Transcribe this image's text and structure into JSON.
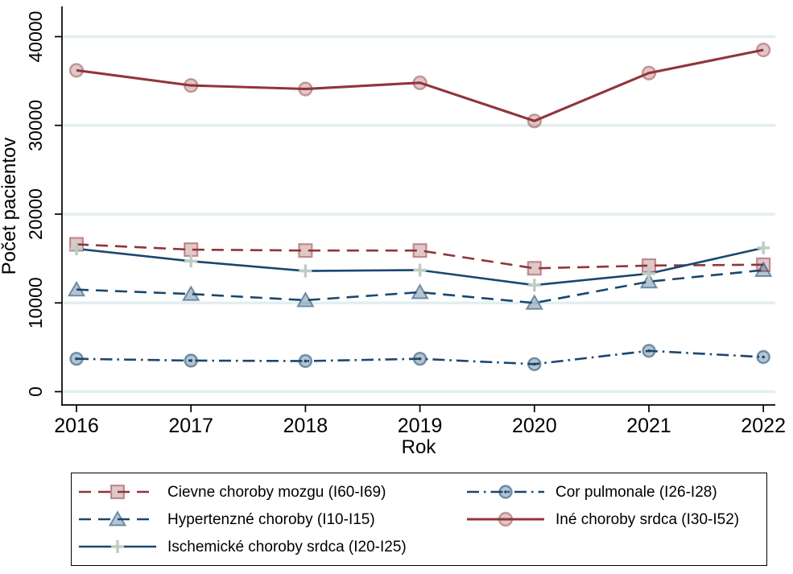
{
  "chart_data": {
    "type": "line",
    "title": "",
    "xlabel": "Rok",
    "ylabel": "Počet pacientov",
    "x": [
      2016,
      2017,
      2018,
      2019,
      2020,
      2021,
      2022
    ],
    "y_ticks": [
      0,
      10000,
      20000,
      30000,
      40000
    ],
    "ylim": [
      0,
      43000
    ],
    "grid": "horizontal",
    "legend_position": "bottom",
    "colors": {
      "grid": "#E3EEF0",
      "axis": "#000000",
      "background": "#FFFFFF",
      "maroon": "#90353B",
      "navy": "#1A476F",
      "plus_marker": "#BCCEC3"
    },
    "series": [
      {
        "name": "cievne-choroby-mozgu",
        "label": "Cievne choroby mozgu (I60-I69)",
        "color": "#90353B",
        "line_style": "dashed",
        "line_width": 2.6,
        "marker": "square",
        "marker_fill": "rgba(144,53,59,0.28)",
        "marker_stroke": "rgba(144,53,59,0.50)",
        "values": [
          16600,
          16000,
          15900,
          15900,
          13900,
          14200,
          14300
        ]
      },
      {
        "name": "cor-pulmonale",
        "label": "Cor pulmonale (I26-I28)",
        "color": "#1A476F",
        "line_style": "dash-dot",
        "line_width": 2.6,
        "marker": "circle-dot",
        "marker_fill": "rgba(26,71,111,0.32)",
        "marker_stroke": "rgba(26,71,111,0.55)",
        "values": [
          3700,
          3500,
          3450,
          3700,
          3100,
          4600,
          3900
        ]
      },
      {
        "name": "hypertenzne-choroby",
        "label": "Hypertenzné choroby (I10-I15)",
        "color": "#1A476F",
        "line_style": "dashed",
        "line_width": 2.6,
        "marker": "triangle",
        "marker_fill": "rgba(26,71,111,0.32)",
        "marker_stroke": "rgba(26,71,111,0.55)",
        "values": [
          11500,
          11000,
          10300,
          11200,
          10000,
          12400,
          13700
        ]
      },
      {
        "name": "ine-choroby-srdca",
        "label": "Iné choroby srdca (I30-I52)",
        "color": "#90353B",
        "line_style": "solid",
        "line_width": 3.1,
        "marker": "circle",
        "marker_fill": "rgba(144,53,59,0.28)",
        "marker_stroke": "rgba(144,53,59,0.45)",
        "values": [
          36200,
          34500,
          34100,
          34800,
          30500,
          35900,
          38500
        ]
      },
      {
        "name": "ischemicke-choroby-srdca",
        "label": "Ischemické choroby srdca (I20-I25)",
        "color": "#1A476F",
        "line_style": "solid",
        "line_width": 2.6,
        "marker": "plus",
        "marker_fill": "none",
        "marker_stroke": "#BCCEC3",
        "values": [
          16100,
          14700,
          13600,
          13700,
          12000,
          13300,
          16200
        ]
      }
    ]
  }
}
